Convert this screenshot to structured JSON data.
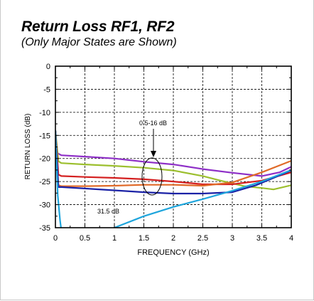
{
  "header": {
    "title": "Return Loss RF1, RF2",
    "subtitle": "(Only Major States are Shown)"
  },
  "chart_data": {
    "type": "line",
    "title": "Return Loss RF1, RF2",
    "subtitle": "(Only Major States are Shown)",
    "xlabel": "FREQUENCY (GHz)",
    "ylabel": "RETURN LOSS (dB)",
    "xlim": [
      0,
      4
    ],
    "ylim": [
      -35,
      0
    ],
    "xticks": [
      0,
      0.5,
      1,
      1.5,
      2,
      2.5,
      3,
      3.5,
      4
    ],
    "xtick_labels": [
      "0",
      "0.5",
      "1",
      "1.5",
      "2",
      "2.5",
      "3",
      "3.5",
      "4"
    ],
    "yticks": [
      0,
      -5,
      -10,
      -15,
      -20,
      -25,
      -30,
      -35
    ],
    "ytick_labels": [
      "0",
      "-5",
      "-10",
      "-15",
      "-20",
      "-25",
      "-30",
      "-35"
    ],
    "grid": true,
    "annotations": [
      {
        "text": "0.5-16 dB",
        "x": 1.67,
        "y": -13
      },
      {
        "text": "31.5 dB",
        "x": 0.93,
        "y": -32
      }
    ],
    "series": [
      {
        "color": "#8e2fc7",
        "x": [
          0,
          0.03,
          0.1,
          0.5,
          1,
          1.5,
          2,
          2.5,
          3,
          3.5,
          3.8,
          4
        ],
        "y": [
          -14,
          -18.8,
          -19.3,
          -19.6,
          -20.0,
          -20.7,
          -21.3,
          -22.3,
          -23.1,
          -23.8,
          -23.0,
          -21.8
        ]
      },
      {
        "color": "#9cbf2e",
        "x": [
          0,
          0.05,
          0.1,
          0.5,
          1,
          1.5,
          2,
          2.5,
          2.8,
          3.2,
          3.5,
          3.7,
          4
        ],
        "y": [
          -14,
          -20.6,
          -21.0,
          -21.3,
          -21.6,
          -22.0,
          -22.6,
          -23.8,
          -24.8,
          -26.0,
          -26.4,
          -26.7,
          -25.8
        ]
      },
      {
        "color": "#d42020",
        "x": [
          0,
          0.05,
          0.1,
          0.5,
          1,
          1.5,
          2,
          2.5,
          3,
          3.5,
          4
        ],
        "y": [
          -14,
          -23.5,
          -23.8,
          -24.0,
          -24.2,
          -24.5,
          -25.0,
          -25.6,
          -25.6,
          -24.8,
          -23.0
        ]
      },
      {
        "color": "#e06a28",
        "x": [
          0,
          0.05,
          0.1,
          0.5,
          1,
          1.5,
          2,
          2.5,
          3,
          3.5,
          4
        ],
        "y": [
          -14,
          -25.8,
          -26.0,
          -26.0,
          -25.9,
          -25.7,
          -25.7,
          -25.9,
          -25.2,
          -23.0,
          -20.5
        ]
      },
      {
        "color": "#1b22a6",
        "x": [
          0,
          0.05,
          0.1,
          0.5,
          1,
          1.5,
          2,
          2.5,
          3,
          3.4,
          3.7,
          4
        ],
        "y": [
          -14,
          -26.2,
          -26.2,
          -26.5,
          -26.9,
          -27.3,
          -27.6,
          -27.6,
          -27.3,
          -25.8,
          -24.2,
          -22.6
        ]
      },
      {
        "color": "#1ea5dc",
        "x": [
          0,
          0.04,
          0.08,
          0.1,
          0.5,
          1,
          1.5,
          2,
          2.5,
          3,
          3.5,
          4
        ],
        "y": [
          -14,
          -28,
          -33.5,
          -35.5,
          -38,
          -35,
          -32.5,
          -30.5,
          -28.8,
          -27.0,
          -25.0,
          -22.5
        ]
      }
    ]
  }
}
